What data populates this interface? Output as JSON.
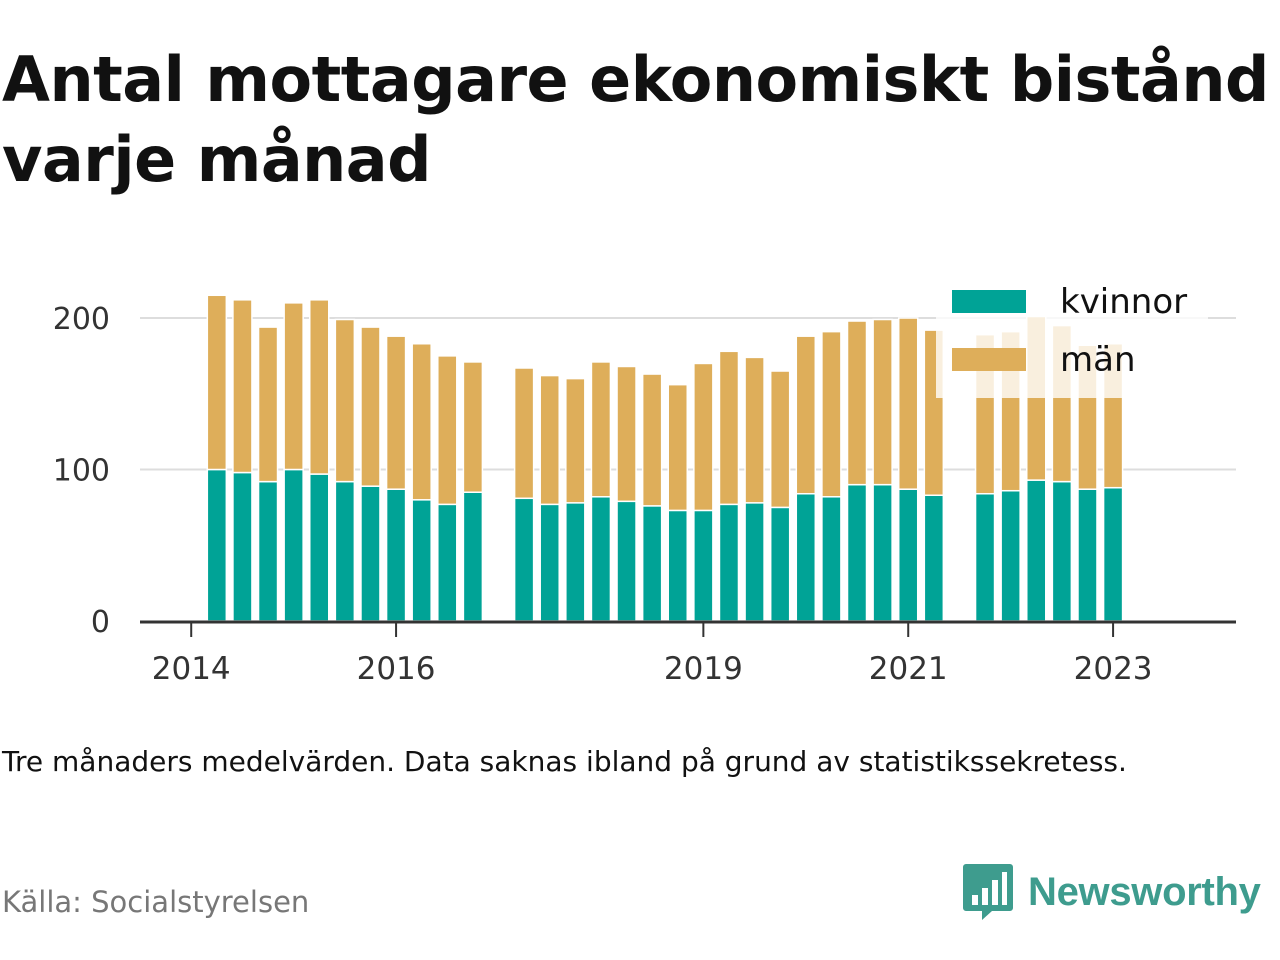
{
  "header": {
    "title": "Antal mottagare ekonomiskt bistånd varje månad"
  },
  "footer": {
    "note": "Tre månaders medelvärden. Data saknas ibland på grund av statistikssekretess.",
    "source": "Källa: Socialstyrelsen",
    "brand": "Newsworthy",
    "brand_icon": "newsworthy-logo-icon"
  },
  "colors": {
    "kvinnor": "#00a396",
    "man": "#deae5a",
    "grid": "#dddddd",
    "axis": "#333333",
    "brand": "#3e9c8e"
  },
  "chart_data": {
    "type": "bar",
    "stacked": true,
    "ylim": [
      0,
      210
    ],
    "yticks": [
      0,
      100,
      200
    ],
    "xticks": [
      {
        "label": "2014",
        "value": 2014.0
      },
      {
        "label": "2016",
        "value": 2016.0
      },
      {
        "label": "2019",
        "value": 2019.0
      },
      {
        "label": "2021",
        "value": 2021.0
      },
      {
        "label": "2023",
        "value": 2023.0
      }
    ],
    "xlim": [
      2013.5,
      2024.2
    ],
    "grid": true,
    "legend_position": "top-right",
    "x": [
      2014.25,
      2014.5,
      2014.75,
      2015.0,
      2015.25,
      2015.5,
      2015.75,
      2016.0,
      2016.25,
      2016.5,
      2016.75,
      2017.25,
      2017.5,
      2017.75,
      2018.0,
      2018.25,
      2018.5,
      2018.75,
      2019.0,
      2019.25,
      2019.5,
      2019.75,
      2020.0,
      2020.25,
      2020.5,
      2020.75,
      2021.0,
      2021.25,
      2021.75,
      2022.0,
      2022.25,
      2022.5,
      2022.75,
      2023.0
    ],
    "series": [
      {
        "name": "kvinnor",
        "values": [
          100,
          98,
          92,
          100,
          97,
          92,
          89,
          87,
          80,
          77,
          85,
          81,
          77,
          78,
          82,
          79,
          76,
          73,
          73,
          77,
          78,
          75,
          84,
          82,
          90,
          90,
          87,
          83,
          84,
          86,
          93,
          92,
          87,
          88
        ]
      },
      {
        "name": "män",
        "values": [
          115,
          114,
          102,
          110,
          115,
          107,
          105,
          101,
          103,
          98,
          86,
          86,
          85,
          82,
          89,
          89,
          87,
          83,
          97,
          101,
          96,
          90,
          104,
          109,
          108,
          109,
          113,
          109,
          105,
          105,
          108,
          103,
          95,
          95
        ]
      }
    ]
  }
}
